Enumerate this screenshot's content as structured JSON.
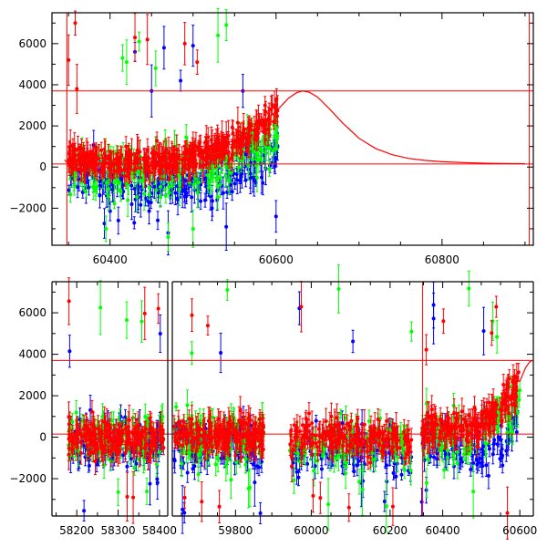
{
  "chart_data": [
    {
      "type": "scatter",
      "title": "",
      "xlabel": "",
      "ylabel": "",
      "xlim": [
        60330,
        60910
      ],
      "ylim": [
        -3800,
        7500
      ],
      "x_ticks": [
        60400,
        60600,
        60800
      ],
      "y_ticks": [
        -2000,
        0,
        2000,
        4000,
        6000
      ],
      "x_tick_labels": [
        "60400",
        "60600",
        "60800"
      ],
      "y_tick_labels": [
        "−2000",
        "0",
        "2000",
        "4000",
        "6000"
      ],
      "grid": false,
      "hlines": [
        3700,
        150
      ],
      "vlines": [
        60348,
        60905
      ],
      "model_curve": {
        "color": "#ff0000",
        "x": [
          60345,
          60350,
          60360,
          60380,
          60400,
          60450,
          60500,
          60550,
          60580,
          60600,
          60615,
          60625,
          60632,
          60640,
          60650,
          60665,
          60680,
          60700,
          60720,
          60740,
          60760,
          60780,
          60800,
          60830,
          60860,
          60900
        ],
        "y": [
          350,
          150,
          140,
          170,
          220,
          400,
          700,
          1300,
          2000,
          2700,
          3350,
          3620,
          3700,
          3640,
          3400,
          2800,
          2150,
          1400,
          900,
          600,
          420,
          320,
          260,
          210,
          180,
          160
        ]
      },
      "series": [
        {
          "color": "#0000ff",
          "trend": [
            [
              60355,
              -200
            ],
            [
              60400,
              -700
            ],
            [
              60450,
              -800
            ],
            [
              60500,
              -700
            ],
            [
              60550,
              -400
            ],
            [
              60590,
              600
            ],
            [
              60600,
              1200
            ]
          ],
          "scatter": 1100,
          "outliers": [
            [
              60430,
              5600
            ],
            [
              60465,
              5800
            ],
            [
              60500,
              5900
            ],
            [
              60485,
              4200
            ],
            [
              60450,
              3700
            ],
            [
              60560,
              3700
            ],
            [
              60410,
              -2600
            ],
            [
              60470,
              -3200
            ],
            [
              60540,
              -2900
            ],
            [
              60600,
              -2400
            ]
          ]
        },
        {
          "color": "#00ff00",
          "trend": [
            [
              60355,
              0
            ],
            [
              60400,
              -300
            ],
            [
              60450,
              -200
            ],
            [
              60500,
              0
            ],
            [
              60550,
              200
            ],
            [
              60590,
              1200
            ],
            [
              60600,
              1800
            ]
          ],
          "scatter": 1100,
          "outliers": [
            [
              60415,
              5300
            ],
            [
              60435,
              6100
            ],
            [
              60455,
              4800
            ],
            [
              60530,
              6400
            ],
            [
              60540,
              6900
            ],
            [
              60420,
              5100
            ],
            [
              60395,
              -3000
            ],
            [
              60470,
              -3400
            ],
            [
              60500,
              -3000
            ]
          ]
        },
        {
          "color": "#ff0000",
          "trend": [
            [
              60350,
              400
            ],
            [
              60400,
              200
            ],
            [
              60450,
              300
            ],
            [
              60500,
              500
            ],
            [
              60550,
              1100
            ],
            [
              60580,
              2000
            ],
            [
              60600,
              2800
            ]
          ],
          "scatter": 600,
          "outliers": [
            [
              60350,
              5200
            ],
            [
              60358,
              7000
            ],
            [
              60445,
              6200
            ],
            [
              60490,
              6000
            ],
            [
              60505,
              5100
            ],
            [
              60430,
              6300
            ],
            [
              60360,
              3800
            ]
          ]
        }
      ]
    },
    {
      "type": "scatter",
      "title": "",
      "xlabel": "",
      "ylabel": "",
      "ylim": [
        -3800,
        7500
      ],
      "broken_x_axis": true,
      "segments": [
        {
          "xlim": [
            58140,
            58420
          ],
          "x_ticks": [
            58200,
            58300,
            58400
          ],
          "x_tick_labels": [
            "58200",
            "58300",
            "58400"
          ],
          "data_range": [
            58180,
            58410
          ]
        },
        {
          "xlim": [
            59625,
            59895
          ],
          "x_ticks": [
            59800
          ],
          "x_tick_labels": [
            "59800"
          ],
          "data_range": [
            59630,
            59880
          ]
        },
        {
          "xlim": [
            59895,
            60265
          ],
          "x_ticks": [
            60000,
            60200
          ],
          "x_tick_labels": [
            "60000",
            "60200"
          ],
          "data_range": [
            59945,
            60255
          ]
        },
        {
          "xlim": [
            60330,
            60635
          ],
          "x_ticks": [
            60400,
            60600
          ],
          "x_tick_labels": [
            "60400",
            "60600"
          ],
          "data_range": [
            60345,
            60600
          ]
        }
      ],
      "y_ticks": [
        -2000,
        0,
        2000,
        4000,
        6000
      ],
      "y_tick_labels": [
        "−2000",
        "0",
        "2000",
        "4000",
        "6000"
      ],
      "grid": false,
      "hlines": [
        3700,
        150
      ],
      "series_colors": [
        "#0000ff",
        "#00ff00",
        "#ff0000"
      ]
    }
  ]
}
